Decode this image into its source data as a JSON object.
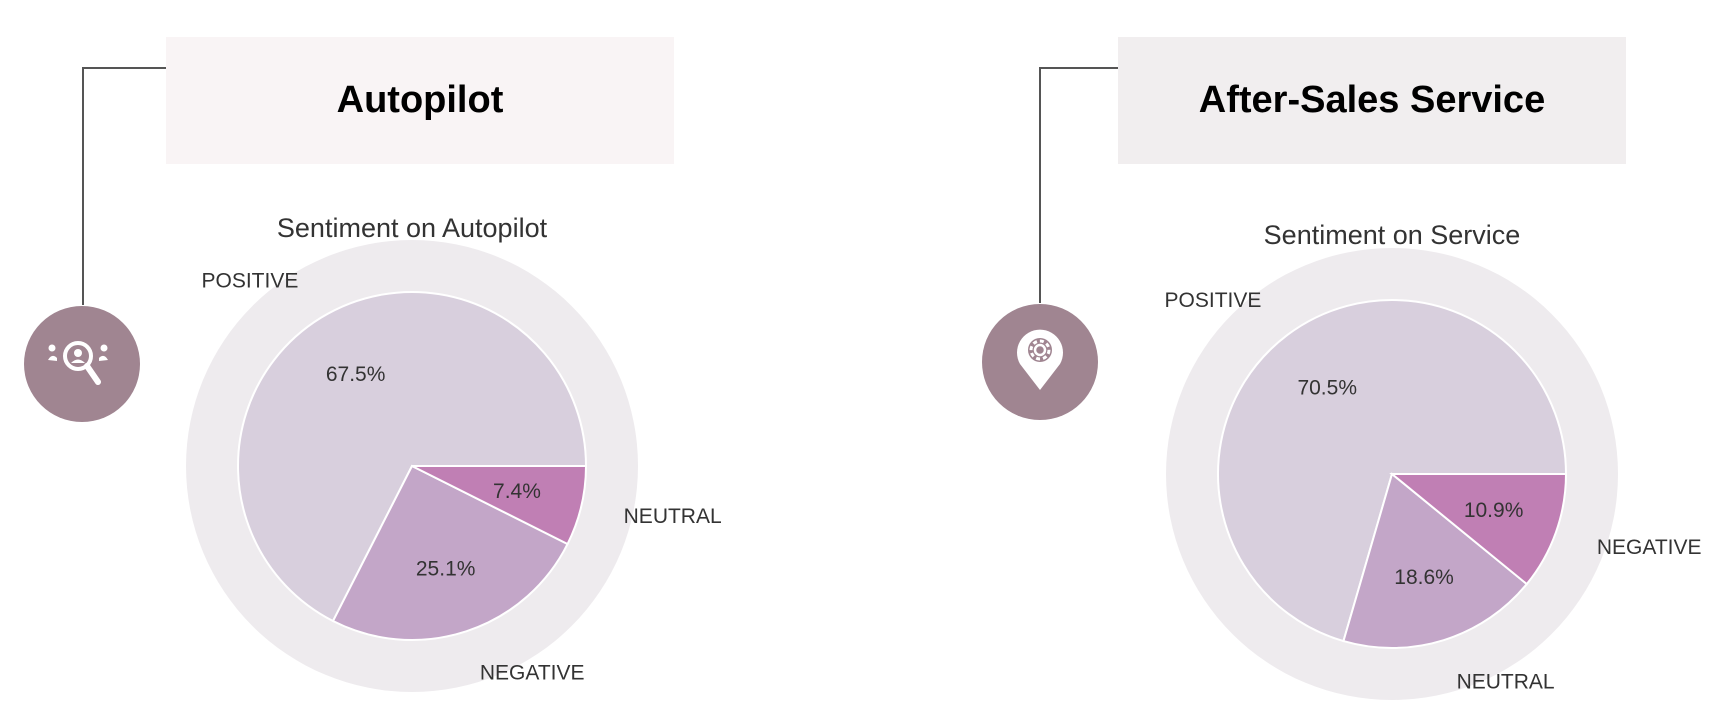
{
  "colors": {
    "badge": "#a08591",
    "connector": "#555555",
    "outer_ring": "#eeebee",
    "slice_separator": "#ffffff"
  },
  "cards": [
    {
      "heading": "Autopilot",
      "heading_bg": "#f9f4f5",
      "icon": "search-people-icon"
    },
    {
      "heading": "After-Sales Service",
      "heading_bg": "#f1eeef",
      "icon": "gear-location-pin-icon"
    }
  ],
  "chart_data": [
    {
      "type": "pie",
      "title": "Sentiment on Autopilot",
      "slices": [
        {
          "label": "POSITIVE",
          "value": 67.5,
          "display": "67.5%",
          "color": "#d8cfdd"
        },
        {
          "label": "NEGATIVE",
          "value": 25.1,
          "display": "25.1%",
          "color": "#c3a6c8"
        },
        {
          "label": "NEUTRAL",
          "value": 7.4,
          "display": "7.4%",
          "color": "#c07fb4"
        }
      ],
      "start_angle": "3 o'clock",
      "direction": "counterclockwise",
      "legend": "none"
    },
    {
      "type": "pie",
      "title": "Sentiment on Service",
      "slices": [
        {
          "label": "POSITIVE",
          "value": 70.5,
          "display": "70.5%",
          "color": "#d8cfdd"
        },
        {
          "label": "NEUTRAL",
          "value": 18.6,
          "display": "18.6%",
          "color": "#c3a6c8"
        },
        {
          "label": "NEGATIVE",
          "value": 10.9,
          "display": "10.9%",
          "color": "#c07fb4"
        }
      ],
      "start_angle": "3 o'clock",
      "direction": "counterclockwise",
      "legend": "none"
    }
  ]
}
